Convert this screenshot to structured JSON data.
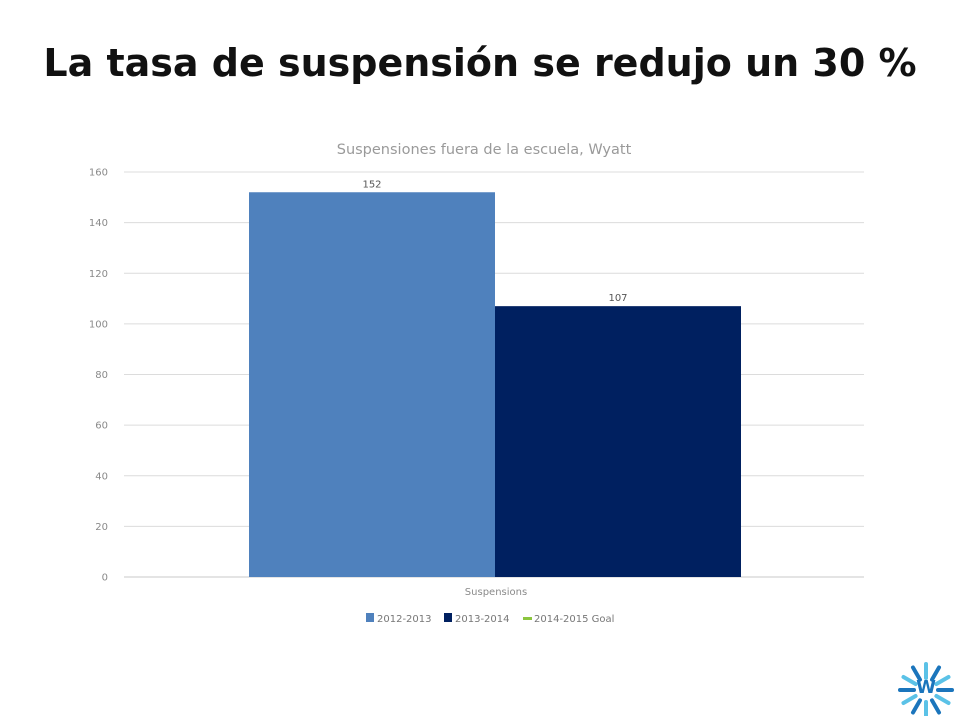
{
  "slide": {
    "title": "La tasa de suspensión se redujo un 30 %"
  },
  "chart_data": {
    "type": "bar",
    "title": "Suspensiones fuera de la escuela, Wyatt",
    "categories": [
      "Suspensions"
    ],
    "series": [
      {
        "name": "2012-2013",
        "values": [
          152
        ],
        "color": "#4f81bd"
      },
      {
        "name": "2013-2014",
        "values": [
          107
        ],
        "color": "#002060"
      },
      {
        "name": "2014-2015 Goal",
        "values": [
          null
        ],
        "color": "#8cc63f"
      }
    ],
    "ylim": [
      0,
      160
    ],
    "yticks": [
      0,
      20,
      40,
      60,
      80,
      100,
      120,
      140,
      160
    ],
    "grid": true,
    "legend": "bottom"
  },
  "logo": {
    "icon": "starburst-logo-icon",
    "lettering": "W",
    "colors": [
      "#1b75bc",
      "#5bc2e7"
    ]
  }
}
